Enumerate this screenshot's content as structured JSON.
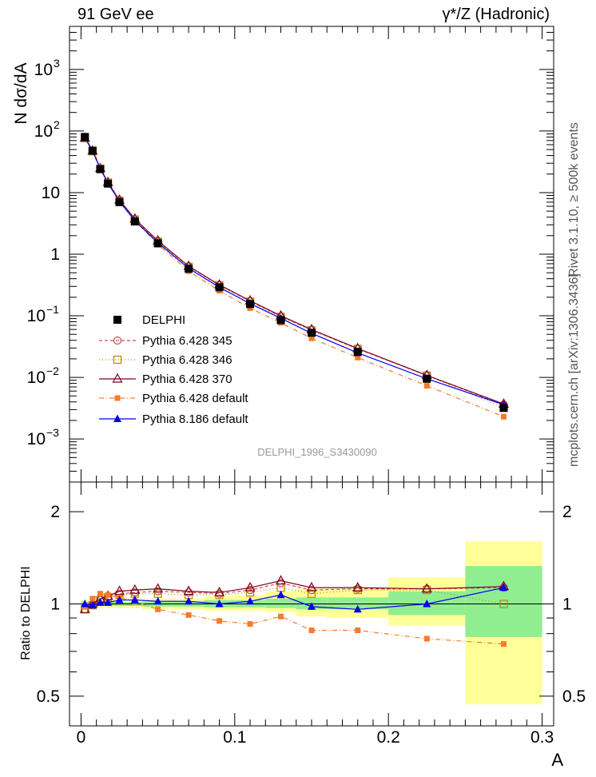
{
  "header": {
    "left": "91 GeV ee",
    "right": "γ*/Z (Hadronic)"
  },
  "side_text": {
    "rivet": "Rivet 3.1.10, ≥ 500k events",
    "mcplots": "mcplots.cern.ch [arXiv:1306.3436]"
  },
  "analysis_tag": "DELPHI_1996_S3430090",
  "axes": {
    "ylabel_main": "N dσ/dA",
    "ylabel_ratio": "Ratio to DELPHI",
    "xlabel": "A",
    "x_ticks": [
      "0",
      "0.1",
      "0.2",
      "0.3"
    ],
    "ratio_ticks": [
      "0.5",
      "1",
      "2"
    ]
  },
  "colors": {
    "band_green": "#90ee90",
    "band_yellow": "#ffff99",
    "p345": "#c0504d",
    "p346": "#b8860b",
    "p370": "#800020",
    "p6def": "#f47c2c",
    "p8def": "#0000ee"
  },
  "chart_data": [
    {
      "type": "scatter",
      "title": "",
      "ylabel": "N dσ/dA",
      "yscale": "log",
      "ylim": [
        0.0002,
        5000
      ],
      "xlim": [
        -0.0075,
        0.3075
      ],
      "x": [
        0.0025,
        0.0075,
        0.0125,
        0.0175,
        0.025,
        0.035,
        0.05,
        0.07,
        0.09,
        0.11,
        0.13,
        0.15,
        0.18,
        0.225,
        0.275
      ],
      "series": [
        {
          "name": "DELPHI",
          "key": "data",
          "values": [
            80,
            48,
            24,
            14,
            7.0,
            3.4,
            1.5,
            0.58,
            0.29,
            0.155,
            0.085,
            0.053,
            0.026,
            0.0095,
            0.0032
          ]
        },
        {
          "name": "Pythia 6.428 345",
          "key": "p345",
          "values": [
            77,
            47,
            24.5,
            14.5,
            7.4,
            3.65,
            1.62,
            0.63,
            0.315,
            0.172,
            0.098,
            0.059,
            0.029,
            0.0108,
            0.0036
          ]
        },
        {
          "name": "Pythia 6.428 346",
          "key": "p346",
          "values": [
            77,
            47,
            24.5,
            14.5,
            7.4,
            3.65,
            1.6,
            0.625,
            0.312,
            0.17,
            0.096,
            0.058,
            0.029,
            0.0107,
            0.0032
          ]
        },
        {
          "name": "Pythia 6.428 370",
          "key": "p370",
          "values": [
            77,
            47.5,
            24.8,
            14.7,
            7.6,
            3.75,
            1.66,
            0.64,
            0.318,
            0.176,
            0.1,
            0.06,
            0.0295,
            0.0108,
            0.0037
          ]
        },
        {
          "name": "Pythia 6.428 default",
          "key": "p6def",
          "values": [
            78,
            50,
            26,
            15,
            7.3,
            3.5,
            1.44,
            0.53,
            0.255,
            0.133,
            0.077,
            0.043,
            0.021,
            0.0073,
            0.0023
          ]
        },
        {
          "name": "Pythia 8.186 default",
          "key": "p8def",
          "values": [
            80,
            47.5,
            24.5,
            14.2,
            7.2,
            3.5,
            1.53,
            0.59,
            0.29,
            0.158,
            0.091,
            0.052,
            0.025,
            0.0095,
            0.0036
          ]
        }
      ],
      "legend_position": "lower-left"
    },
    {
      "type": "scatter",
      "title": "",
      "ylabel": "Ratio to DELPHI",
      "xlabel": "A",
      "yscale": "log",
      "ylim": [
        0.4,
        2.5
      ],
      "xlim": [
        -0.0075,
        0.3075
      ],
      "bins": [
        {
          "lo": 0.0,
          "hi": 0.005,
          "green": [
            0.985,
            1.015
          ],
          "yellow": [
            0.97,
            1.03
          ]
        },
        {
          "lo": 0.005,
          "hi": 0.01,
          "green": [
            0.985,
            1.015
          ],
          "yellow": [
            0.97,
            1.03
          ]
        },
        {
          "lo": 0.01,
          "hi": 0.015,
          "green": [
            0.985,
            1.015
          ],
          "yellow": [
            0.97,
            1.03
          ]
        },
        {
          "lo": 0.015,
          "hi": 0.02,
          "green": [
            0.985,
            1.015
          ],
          "yellow": [
            0.97,
            1.03
          ]
        },
        {
          "lo": 0.02,
          "hi": 0.03,
          "green": [
            0.985,
            1.015
          ],
          "yellow": [
            0.97,
            1.03
          ]
        },
        {
          "lo": 0.03,
          "hi": 0.04,
          "green": [
            0.985,
            1.015
          ],
          "yellow": [
            0.97,
            1.03
          ]
        },
        {
          "lo": 0.04,
          "hi": 0.06,
          "green": [
            0.98,
            1.02
          ],
          "yellow": [
            0.96,
            1.04
          ]
        },
        {
          "lo": 0.06,
          "hi": 0.08,
          "green": [
            0.98,
            1.02
          ],
          "yellow": [
            0.96,
            1.04
          ]
        },
        {
          "lo": 0.08,
          "hi": 0.1,
          "green": [
            0.975,
            1.03
          ],
          "yellow": [
            0.95,
            1.06
          ]
        },
        {
          "lo": 0.1,
          "hi": 0.12,
          "green": [
            0.975,
            1.03
          ],
          "yellow": [
            0.95,
            1.07
          ]
        },
        {
          "lo": 0.12,
          "hi": 0.14,
          "green": [
            0.97,
            1.04
          ],
          "yellow": [
            0.94,
            1.1
          ]
        },
        {
          "lo": 0.14,
          "hi": 0.16,
          "green": [
            0.96,
            1.05
          ],
          "yellow": [
            0.91,
            1.12
          ]
        },
        {
          "lo": 0.16,
          "hi": 0.2,
          "green": [
            0.96,
            1.05
          ],
          "yellow": [
            0.9,
            1.12
          ]
        },
        {
          "lo": 0.2,
          "hi": 0.25,
          "green": [
            0.92,
            1.1
          ],
          "yellow": [
            0.85,
            1.22
          ]
        },
        {
          "lo": 0.25,
          "hi": 0.3,
          "green": [
            0.78,
            1.33
          ],
          "yellow": [
            0.47,
            1.6
          ]
        }
      ],
      "x": [
        0.0025,
        0.0075,
        0.0125,
        0.0175,
        0.025,
        0.035,
        0.05,
        0.07,
        0.09,
        0.11,
        0.13,
        0.15,
        0.18,
        0.225,
        0.275
      ],
      "series": [
        {
          "name": "Pythia 6.428 345",
          "key": "p345",
          "values": [
            0.96,
            0.99,
            1.03,
            1.05,
            1.08,
            1.09,
            1.1,
            1.09,
            1.08,
            1.11,
            1.17,
            1.11,
            1.12,
            1.12,
            1.13
          ]
        },
        {
          "name": "Pythia 6.428 346",
          "key": "p346",
          "values": [
            0.96,
            0.99,
            1.03,
            1.05,
            1.07,
            1.08,
            1.08,
            1.07,
            1.07,
            1.09,
            1.13,
            1.08,
            1.11,
            1.11,
            1.0
          ]
        },
        {
          "name": "Pythia 6.428 370",
          "key": "p370",
          "values": [
            0.96,
            1.0,
            1.04,
            1.06,
            1.1,
            1.11,
            1.12,
            1.1,
            1.09,
            1.13,
            1.19,
            1.13,
            1.13,
            1.12,
            1.14
          ]
        },
        {
          "name": "Pythia 6.428 default",
          "key": "p6def",
          "values": [
            0.98,
            1.04,
            1.08,
            1.07,
            1.05,
            1.02,
            0.96,
            0.92,
            0.88,
            0.86,
            0.91,
            0.82,
            0.82,
            0.77,
            0.74
          ]
        },
        {
          "name": "Pythia 8.186 default",
          "key": "p8def",
          "values": [
            1.0,
            0.99,
            1.01,
            1.01,
            1.03,
            1.03,
            1.02,
            1.02,
            1.0,
            1.02,
            1.07,
            0.98,
            0.96,
            1.0,
            1.13
          ]
        }
      ]
    }
  ]
}
